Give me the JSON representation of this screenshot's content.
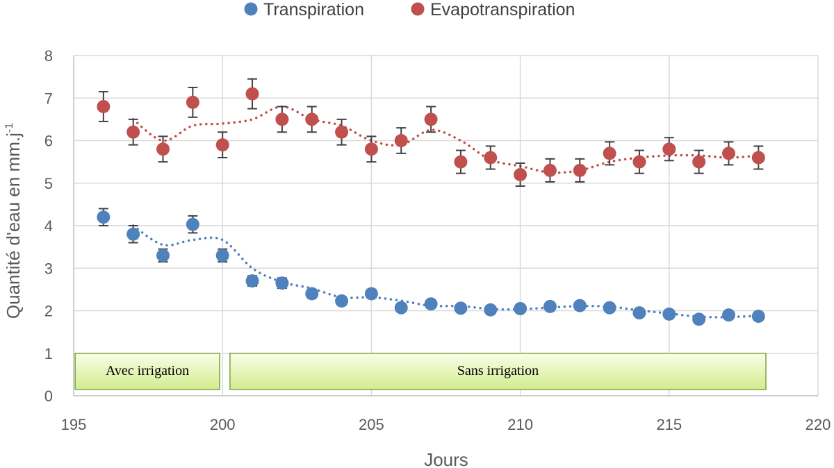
{
  "chart_data": {
    "type": "scatter",
    "xlabel": "Jours",
    "ylabel": "Quantité d'eau en mm.j",
    "ylabel_superscript": "-1",
    "xlim": [
      195,
      220
    ],
    "ylim": [
      0,
      8
    ],
    "xticks": [
      195,
      200,
      205,
      210,
      215,
      220
    ],
    "yticks": [
      0,
      1,
      2,
      3,
      4,
      5,
      6,
      7,
      8
    ],
    "grid": true,
    "legend_position": "top-center",
    "series": [
      {
        "name": "Transpiration",
        "color": "#4f81bd",
        "trendline": "moving-average-dotted",
        "x": [
          196,
          197,
          198,
          199,
          200,
          201,
          202,
          203,
          204,
          205,
          206,
          207,
          208,
          209,
          210,
          211,
          212,
          213,
          214,
          215,
          216,
          217,
          218
        ],
        "y": [
          4.2,
          3.8,
          3.3,
          4.03,
          3.3,
          2.7,
          2.65,
          2.4,
          2.23,
          2.4,
          2.07,
          2.16,
          2.06,
          2.02,
          2.05,
          2.1,
          2.12,
          2.07,
          1.95,
          1.92,
          1.8,
          1.9,
          1.87
        ],
        "err": [
          0.2,
          0.2,
          0.15,
          0.2,
          0.15,
          0.12,
          0.12,
          0.1,
          0.1,
          0.1,
          0.08,
          0.08,
          0.08,
          0.08,
          0.08,
          0.08,
          0.08,
          0.08,
          0.08,
          0.08,
          0.08,
          0.08,
          0.08
        ]
      },
      {
        "name": "Evapotranspiration",
        "color": "#c0504d",
        "trendline": "moving-average-dotted",
        "x": [
          196,
          197,
          198,
          199,
          200,
          201,
          202,
          203,
          204,
          205,
          206,
          207,
          208,
          209,
          210,
          211,
          212,
          213,
          214,
          215,
          216,
          217,
          218
        ],
        "y": [
          6.8,
          6.2,
          5.8,
          6.9,
          5.9,
          7.1,
          6.5,
          6.5,
          6.2,
          5.8,
          6.0,
          6.5,
          5.5,
          5.6,
          5.2,
          5.3,
          5.3,
          5.7,
          5.5,
          5.8,
          5.5,
          5.7,
          5.6
        ],
        "err": [
          0.35,
          0.3,
          0.3,
          0.35,
          0.3,
          0.35,
          0.3,
          0.3,
          0.3,
          0.3,
          0.3,
          0.3,
          0.27,
          0.27,
          0.27,
          0.27,
          0.27,
          0.27,
          0.27,
          0.27,
          0.27,
          0.27,
          0.27
        ]
      }
    ],
    "annotations": [
      {
        "label": "Avec irrigation",
        "x_start": 195.05,
        "x_end": 199.9,
        "y_start": 0.15,
        "y_end": 1.0
      },
      {
        "label": "Sans irrigation",
        "x_start": 200.25,
        "x_end": 218.25,
        "y_start": 0.15,
        "y_end": 1.0
      }
    ]
  }
}
